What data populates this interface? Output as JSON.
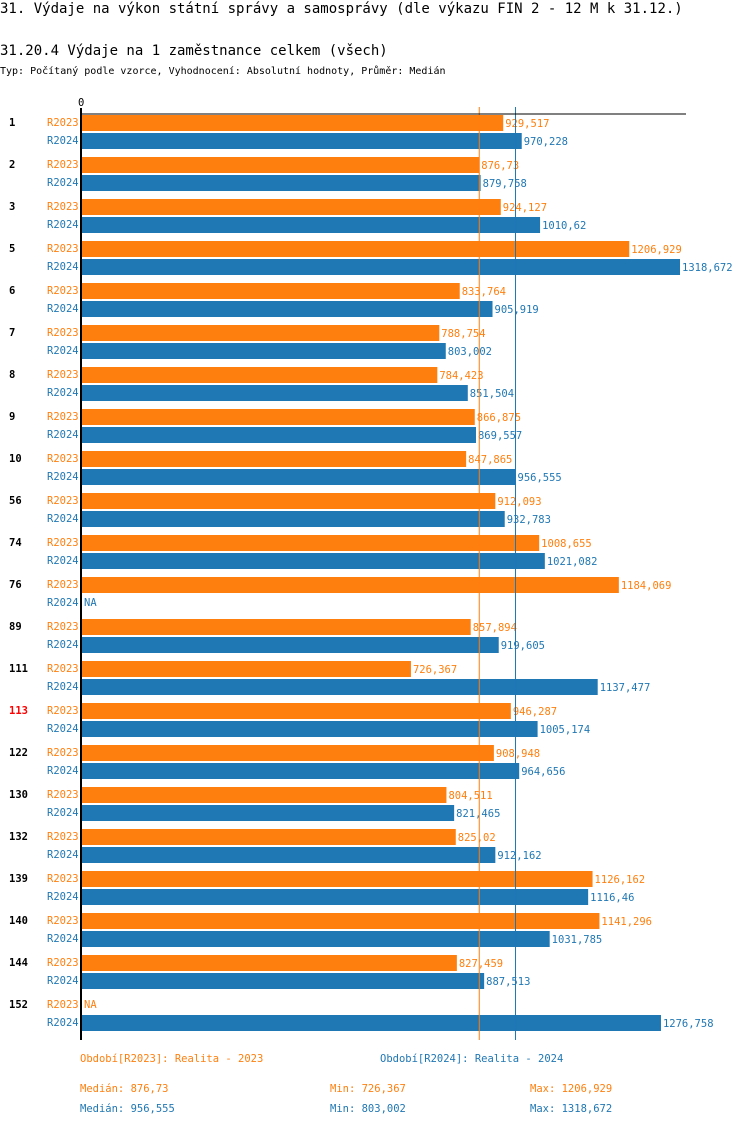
{
  "title": "31. Výdaje na výkon státní správy a samosprávy (dle výkazu FIN 2 - 12 M k 31.12.)",
  "subtitle": "31.20.4 Výdaje na 1 zaměstnance celkem (všech)",
  "info": "Typ: Počítaný podle vzorce, Vyhodnocení: Absolutní hodnoty, Průměr: Medián",
  "colors": {
    "R2023": "#ff7f0e",
    "R2024": "#1f77b4",
    "highlight": "#ff0000"
  },
  "chart_data": {
    "type": "bar",
    "orientation": "horizontal",
    "x_tick_labels": [
      "0"
    ],
    "xlim": [
      0,
      1330
    ],
    "highlighted_category": "113",
    "categories": [
      "1",
      "2",
      "3",
      "5",
      "6",
      "7",
      "8",
      "9",
      "10",
      "56",
      "74",
      "76",
      "89",
      "111",
      "113",
      "122",
      "130",
      "132",
      "139",
      "140",
      "144",
      "152"
    ],
    "series": [
      {
        "name": "R2023",
        "values": [
          929.517,
          876.73,
          924.127,
          1206.929,
          833.764,
          788.754,
          784.423,
          866.875,
          847.865,
          912.093,
          1008.655,
          1184.069,
          857.894,
          726.367,
          946.287,
          908.948,
          804.511,
          825.02,
          1126.162,
          1141.296,
          827.459,
          null
        ]
      },
      {
        "name": "R2024",
        "values": [
          970.228,
          879.758,
          1010.62,
          1318.672,
          905.919,
          803.002,
          851.504,
          869.557,
          956.555,
          932.783,
          1021.082,
          null,
          919.605,
          1137.477,
          1005.174,
          964.656,
          821.465,
          912.162,
          1116.46,
          1031.785,
          887.513,
          1276.758
        ]
      }
    ],
    "na_label": "NA",
    "median_lines": {
      "R2023": 876.73,
      "R2024": 956.555
    }
  },
  "legend": {
    "R2023": {
      "label": "Období[R2023]: Realita - 2023",
      "median": "Medián: 876,73",
      "min": "Min: 726,367",
      "max": "Max: 1206,929"
    },
    "R2024": {
      "label": "Období[R2024]: Realita - 2024",
      "median": "Medián: 956,555",
      "min": "Min: 803,002",
      "max": "Max: 1318,672"
    }
  }
}
